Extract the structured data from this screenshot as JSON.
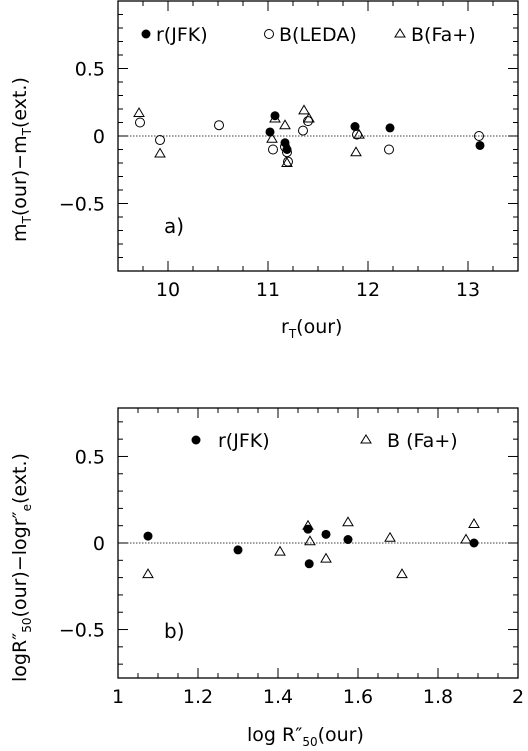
{
  "chart_data": [
    {
      "panel": "a)",
      "type": "scatter",
      "xlabel": "r_T(our)",
      "ylabel": "m_T(our) − m_T(ext.)",
      "xlim": [
        9.5,
        13.5
      ],
      "ylim": [
        -1.0,
        1.0
      ],
      "xticks": [
        10,
        11,
        12,
        13
      ],
      "xtick_labels": [
        "10",
        "11",
        "12",
        "13"
      ],
      "yticks": [
        0.5,
        0,
        -0.5
      ],
      "ytick_labels": [
        "0.5",
        "0",
        "−0.5"
      ],
      "zero_line": true,
      "legend_position": "top",
      "series": [
        {
          "name": "r(JFK)",
          "marker": "filled-circle",
          "points": [
            [
              11.02,
              0.03
            ],
            [
              11.07,
              0.15
            ],
            [
              11.17,
              -0.05
            ],
            [
              11.19,
              -0.1
            ],
            [
              11.87,
              0.07
            ],
            [
              12.22,
              0.06
            ],
            [
              13.12,
              -0.07
            ]
          ]
        },
        {
          "name": "B(LEDA)",
          "marker": "open-circle",
          "points": [
            [
              9.72,
              0.1
            ],
            [
              9.92,
              -0.03
            ],
            [
              10.51,
              0.08
            ],
            [
              11.05,
              -0.1
            ],
            [
              11.17,
              -0.08
            ],
            [
              11.19,
              -0.12
            ],
            [
              11.2,
              -0.19
            ],
            [
              11.35,
              0.04
            ],
            [
              11.4,
              0.11
            ],
            [
              11.89,
              0.01
            ],
            [
              12.21,
              -0.1
            ],
            [
              13.11,
              0.0
            ]
          ]
        },
        {
          "name": "B(Fa+)",
          "marker": "open-triangle",
          "points": [
            [
              9.71,
              0.17
            ],
            [
              9.92,
              -0.13
            ],
            [
              11.04,
              -0.02
            ],
            [
              11.07,
              0.13
            ],
            [
              11.17,
              0.08
            ],
            [
              11.19,
              -0.2
            ],
            [
              11.36,
              0.19
            ],
            [
              11.41,
              0.13
            ],
            [
              11.88,
              -0.12
            ],
            [
              11.91,
              0.01
            ]
          ]
        }
      ]
    },
    {
      "panel": "b)",
      "type": "scatter",
      "xlabel": "log R″50(our)",
      "ylabel": "logR″50(our) − logr″e(ext.)",
      "xlim": [
        1.0,
        2.0
      ],
      "ylim": [
        -0.78,
        0.78
      ],
      "xticks": [
        1.0,
        1.2,
        1.4,
        1.6,
        1.8,
        2.0
      ],
      "xtick_labels": [
        "1",
        "1.2",
        "1.4",
        "1.6",
        "1.8",
        "2"
      ],
      "yticks": [
        0.5,
        0,
        -0.5
      ],
      "ytick_labels": [
        "0.5",
        "0",
        "−0.5"
      ],
      "zero_line": true,
      "legend_position": "top",
      "series": [
        {
          "name": "r(JFK)",
          "marker": "filled-circle",
          "points": [
            [
              1.075,
              0.04
            ],
            [
              1.3,
              -0.04
            ],
            [
              1.475,
              0.08
            ],
            [
              1.478,
              -0.12
            ],
            [
              1.52,
              0.05
            ],
            [
              1.575,
              0.02
            ],
            [
              1.89,
              0.0
            ]
          ]
        },
        {
          "name": "B (Fa+)",
          "marker": "open-triangle",
          "points": [
            [
              1.075,
              -0.18
            ],
            [
              1.405,
              -0.05
            ],
            [
              1.475,
              0.1
            ],
            [
              1.48,
              0.01
            ],
            [
              1.52,
              -0.09
            ],
            [
              1.575,
              0.12
            ],
            [
              1.68,
              0.03
            ],
            [
              1.71,
              -0.18
            ],
            [
              1.87,
              0.02
            ],
            [
              1.89,
              0.11
            ]
          ]
        }
      ]
    }
  ]
}
